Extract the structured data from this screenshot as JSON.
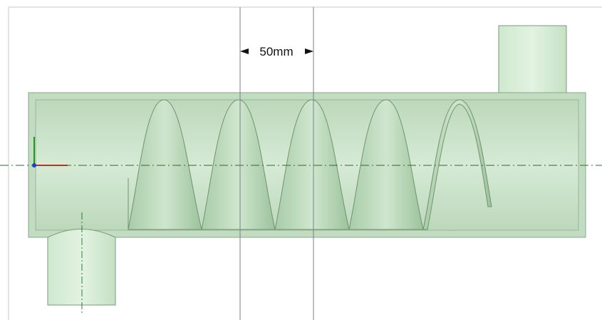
{
  "dimension": {
    "label": "50mm"
  }
}
